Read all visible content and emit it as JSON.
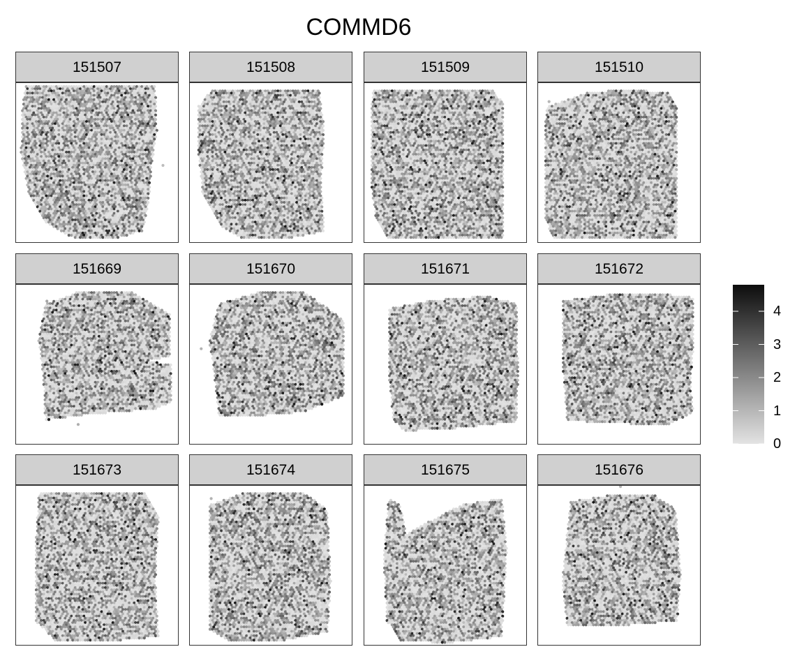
{
  "chart_data": {
    "type": "spatial-heatmap",
    "title": "COMMD6",
    "panels": [
      "151507",
      "151508",
      "151509",
      "151510",
      "151669",
      "151670",
      "151671",
      "151672",
      "151673",
      "151674",
      "151675",
      "151676"
    ],
    "legend": {
      "min": 0,
      "max": 4.8,
      "ticks": [
        0,
        1,
        2,
        3,
        4
      ],
      "tick_labels": [
        "0",
        "1",
        "2",
        "3",
        "4"
      ],
      "color_low": "#e3e3e3",
      "color_high": "#0d0d0d"
    }
  }
}
